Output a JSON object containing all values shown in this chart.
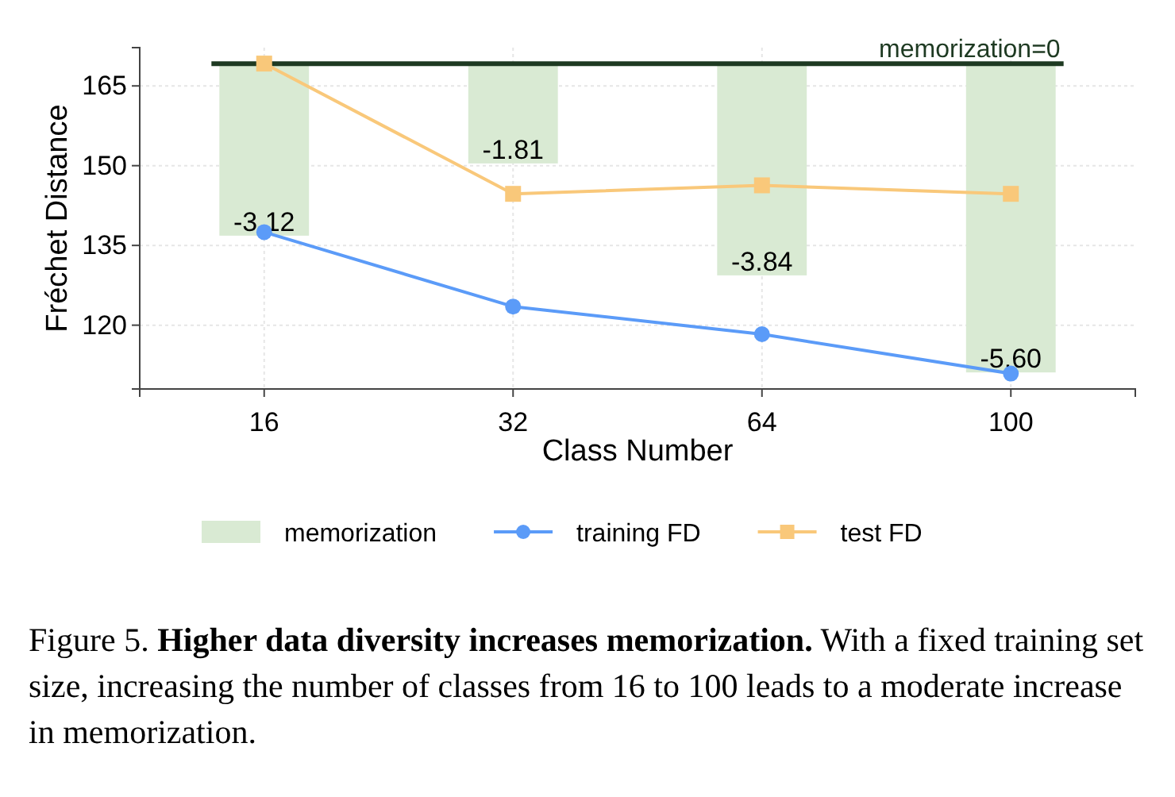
{
  "chart_data": {
    "type": "line",
    "xlabel": "Class Number",
    "ylabel": "Fréchet Distance",
    "categories": [
      "16",
      "32",
      "64",
      "100"
    ],
    "series": [
      {
        "name": "memorization",
        "type": "bar",
        "axis": "y2",
        "color": "#d9ead3",
        "values": [
          -3.12,
          -1.81,
          -3.84,
          -5.6
        ],
        "value_labels": [
          "-3.12",
          "-1.81",
          "-3.84",
          "-5.60"
        ]
      },
      {
        "name": "training FD",
        "marker": "circle",
        "color": "#5b9bf8",
        "values": [
          137.5,
          123.5,
          118.3,
          110.9
        ]
      },
      {
        "name": "test FD",
        "marker": "square",
        "color": "#f9c87a",
        "values": [
          169.2,
          144.7,
          146.3,
          144.7
        ]
      }
    ],
    "ylim": [
      108,
      172.2
    ],
    "yticks": [
      120,
      135,
      150,
      165
    ],
    "y2lim": [
      -5.9,
      0.29
    ],
    "tick_labels": "xy",
    "grid": true,
    "legend": "bottom",
    "line_style": "solid",
    "ref_lines": [
      {
        "axis": "y2",
        "value": 0,
        "label": "memorization=0",
        "color": "#1e3a22"
      }
    ],
    "annotations": [
      "Figure 5.",
      "Higher data diversity increases memorization.",
      "With a fixed training set size, increasing the number of classes from 16 to 100 leads to a moderate increase in memorization."
    ]
  }
}
